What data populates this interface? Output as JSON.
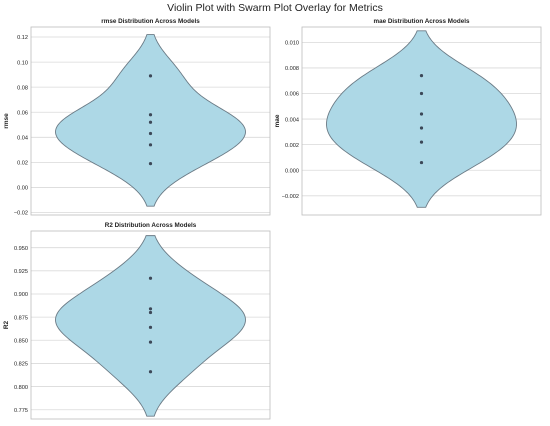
{
  "figure": {
    "title": "Violin Plot with Swarm Plot Overlay for Metrics"
  },
  "colors": {
    "violin_fill": "#add8e6",
    "violin_edge": "#6b7b86",
    "point": "#3c4858",
    "grid": "#d9d9d9",
    "frame": "#bcbcbc",
    "text": "#222222"
  },
  "chart_data": [
    {
      "type": "violin",
      "title": "rmse Distribution Across Models",
      "ylabel": "rmse",
      "xlabel": "",
      "ylim": [
        -0.022,
        0.128
      ],
      "yticks": [
        -0.02,
        0.0,
        0.02,
        0.04,
        0.06,
        0.08,
        0.1,
        0.12
      ],
      "ytick_labels": [
        "−0.02",
        "0.00",
        "0.02",
        "0.04",
        "0.06",
        "0.08",
        "0.10",
        "0.12"
      ],
      "grid": true,
      "kde_extent": [
        -0.015,
        0.122
      ],
      "points": [
        0.089,
        0.058,
        0.052,
        0.043,
        0.034,
        0.019
      ]
    },
    {
      "type": "violin",
      "title": "mae Distribution Across Models",
      "ylabel": "mae",
      "xlabel": "",
      "ylim": [
        -0.0035,
        0.0112
      ],
      "yticks": [
        -0.002,
        0.0,
        0.002,
        0.004,
        0.006,
        0.008,
        0.01
      ],
      "ytick_labels": [
        "−0.002",
        "0.000",
        "0.002",
        "0.004",
        "0.006",
        "0.008",
        "0.010"
      ],
      "grid": true,
      "kde_extent": [
        -0.0029,
        0.0109
      ],
      "points": [
        0.0074,
        0.006,
        0.0044,
        0.0033,
        0.0022,
        0.0006
      ]
    },
    {
      "type": "violin",
      "title": "R2 Distribution Across Models",
      "ylabel": "R2",
      "xlabel": "",
      "ylim": [
        0.765,
        0.968
      ],
      "yticks": [
        0.775,
        0.8,
        0.825,
        0.85,
        0.875,
        0.9,
        0.925,
        0.95
      ],
      "ytick_labels": [
        "0.775",
        "0.800",
        "0.825",
        "0.850",
        "0.875",
        "0.900",
        "0.925",
        "0.950"
      ],
      "grid": true,
      "kde_extent": [
        0.768,
        0.963
      ],
      "points": [
        0.917,
        0.884,
        0.88,
        0.864,
        0.848,
        0.816
      ]
    }
  ]
}
